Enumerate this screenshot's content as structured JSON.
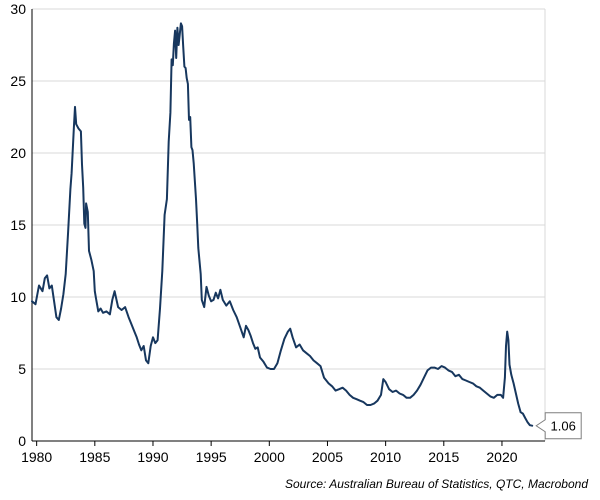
{
  "chart_data": {
    "type": "line",
    "title": "",
    "xlabel": "",
    "ylabel": "",
    "xlim": [
      1979.6,
      2023.7
    ],
    "ylim": [
      0,
      30
    ],
    "grid": true,
    "legend": "none",
    "x_ticks": [
      1980,
      1985,
      1990,
      1995,
      2000,
      2005,
      2010,
      2015,
      2020
    ],
    "x_tick_labels": [
      "1980",
      "1985",
      "1990",
      "1995",
      "2000",
      "2005",
      "2010",
      "2015",
      "2020"
    ],
    "y_ticks": [
      0,
      5,
      10,
      15,
      20,
      25,
      30
    ],
    "y_tick_labels": [
      "0",
      "5",
      "10",
      "15",
      "20",
      "25",
      "30"
    ],
    "series": [
      {
        "color": "#17375e",
        "points": [
          [
            1979.6,
            9.7
          ],
          [
            1979.9,
            9.5
          ],
          [
            1980.2,
            10.8
          ],
          [
            1980.5,
            10.4
          ],
          [
            1980.7,
            11.3
          ],
          [
            1980.9,
            11.5
          ],
          [
            1981.1,
            10.6
          ],
          [
            1981.3,
            10.8
          ],
          [
            1981.5,
            9.7
          ],
          [
            1981.7,
            8.6
          ],
          [
            1981.9,
            8.4
          ],
          [
            1982.1,
            9.2
          ],
          [
            1982.3,
            10.2
          ],
          [
            1982.5,
            11.6
          ],
          [
            1982.7,
            14.5
          ],
          [
            1982.9,
            17.5
          ],
          [
            1983.0,
            18.6
          ],
          [
            1983.2,
            21.8
          ],
          [
            1983.3,
            23.2
          ],
          [
            1983.4,
            22.0
          ],
          [
            1983.6,
            21.7
          ],
          [
            1983.8,
            21.5
          ],
          [
            1983.9,
            19.2
          ],
          [
            1984.0,
            17.6
          ],
          [
            1984.1,
            15.1
          ],
          [
            1984.2,
            14.8
          ],
          [
            1984.25,
            16.5
          ],
          [
            1984.4,
            15.9
          ],
          [
            1984.5,
            13.2
          ],
          [
            1984.7,
            12.6
          ],
          [
            1984.9,
            11.8
          ],
          [
            1985.0,
            10.4
          ],
          [
            1985.1,
            9.9
          ],
          [
            1985.3,
            9.0
          ],
          [
            1985.5,
            9.2
          ],
          [
            1985.7,
            8.9
          ],
          [
            1986.0,
            9.0
          ],
          [
            1986.3,
            8.8
          ],
          [
            1986.5,
            9.8
          ],
          [
            1986.7,
            10.4
          ],
          [
            1987.0,
            9.3
          ],
          [
            1987.3,
            9.1
          ],
          [
            1987.6,
            9.3
          ],
          [
            1987.9,
            8.6
          ],
          [
            1988.1,
            8.2
          ],
          [
            1988.4,
            7.6
          ],
          [
            1988.6,
            7.2
          ],
          [
            1988.8,
            6.7
          ],
          [
            1989.0,
            6.3
          ],
          [
            1989.2,
            6.6
          ],
          [
            1989.4,
            5.6
          ],
          [
            1989.6,
            5.4
          ],
          [
            1989.8,
            6.6
          ],
          [
            1990.0,
            7.2
          ],
          [
            1990.2,
            6.8
          ],
          [
            1990.4,
            7.0
          ],
          [
            1990.6,
            9.2
          ],
          [
            1990.8,
            11.8
          ],
          [
            1991.0,
            15.7
          ],
          [
            1991.2,
            16.8
          ],
          [
            1991.35,
            20.8
          ],
          [
            1991.5,
            22.8
          ],
          [
            1991.6,
            26.5
          ],
          [
            1991.7,
            26.1
          ],
          [
            1991.8,
            27.6
          ],
          [
            1991.9,
            28.5
          ],
          [
            1992.0,
            26.6
          ],
          [
            1992.1,
            28.7
          ],
          [
            1992.2,
            27.5
          ],
          [
            1992.3,
            28.2
          ],
          [
            1992.4,
            29.0
          ],
          [
            1992.5,
            28.8
          ],
          [
            1992.6,
            27.4
          ],
          [
            1992.7,
            26.0
          ],
          [
            1992.8,
            25.9
          ],
          [
            1992.9,
            25.2
          ],
          [
            1993.0,
            24.8
          ],
          [
            1993.1,
            22.3
          ],
          [
            1993.2,
            22.5
          ],
          [
            1993.3,
            20.4
          ],
          [
            1993.4,
            20.2
          ],
          [
            1993.5,
            19.3
          ],
          [
            1993.6,
            18.0
          ],
          [
            1993.7,
            16.8
          ],
          [
            1993.8,
            15.1
          ],
          [
            1993.9,
            13.4
          ],
          [
            1994.0,
            12.5
          ],
          [
            1994.1,
            11.6
          ],
          [
            1994.2,
            9.8
          ],
          [
            1994.4,
            9.3
          ],
          [
            1994.6,
            10.7
          ],
          [
            1994.8,
            10.1
          ],
          [
            1995.0,
            9.7
          ],
          [
            1995.2,
            9.8
          ],
          [
            1995.4,
            10.3
          ],
          [
            1995.6,
            9.9
          ],
          [
            1995.8,
            10.5
          ],
          [
            1996.0,
            9.8
          ],
          [
            1996.3,
            9.4
          ],
          [
            1996.6,
            9.7
          ],
          [
            1996.9,
            9.1
          ],
          [
            1997.2,
            8.6
          ],
          [
            1997.5,
            7.9
          ],
          [
            1997.8,
            7.2
          ],
          [
            1998.0,
            8.0
          ],
          [
            1998.2,
            7.7
          ],
          [
            1998.4,
            7.3
          ],
          [
            1998.6,
            6.8
          ],
          [
            1998.8,
            6.4
          ],
          [
            1999.0,
            6.5
          ],
          [
            1999.2,
            5.8
          ],
          [
            1999.5,
            5.5
          ],
          [
            1999.8,
            5.1
          ],
          [
            2000.1,
            5.0
          ],
          [
            2000.4,
            5.0
          ],
          [
            2000.7,
            5.4
          ],
          [
            2001.0,
            6.3
          ],
          [
            2001.3,
            7.1
          ],
          [
            2001.6,
            7.6
          ],
          [
            2001.8,
            7.8
          ],
          [
            2002.0,
            7.2
          ],
          [
            2002.3,
            6.5
          ],
          [
            2002.6,
            6.7
          ],
          [
            2002.9,
            6.3
          ],
          [
            2003.2,
            6.1
          ],
          [
            2003.5,
            5.9
          ],
          [
            2003.8,
            5.6
          ],
          [
            2004.1,
            5.4
          ],
          [
            2004.4,
            5.2
          ],
          [
            2004.7,
            4.4
          ],
          [
            2004.9,
            4.2
          ],
          [
            2005.1,
            4.0
          ],
          [
            2005.4,
            3.8
          ],
          [
            2005.7,
            3.5
          ],
          [
            2006.0,
            3.6
          ],
          [
            2006.3,
            3.7
          ],
          [
            2006.6,
            3.5
          ],
          [
            2006.9,
            3.2
          ],
          [
            2007.2,
            3.0
          ],
          [
            2007.5,
            2.9
          ],
          [
            2007.8,
            2.8
          ],
          [
            2008.1,
            2.7
          ],
          [
            2008.4,
            2.5
          ],
          [
            2008.7,
            2.5
          ],
          [
            2009.0,
            2.6
          ],
          [
            2009.3,
            2.8
          ],
          [
            2009.6,
            3.2
          ],
          [
            2009.8,
            4.3
          ],
          [
            2010.0,
            4.1
          ],
          [
            2010.3,
            3.6
          ],
          [
            2010.6,
            3.4
          ],
          [
            2010.9,
            3.5
          ],
          [
            2011.2,
            3.3
          ],
          [
            2011.5,
            3.2
          ],
          [
            2011.8,
            3.0
          ],
          [
            2012.1,
            3.0
          ],
          [
            2012.4,
            3.2
          ],
          [
            2012.7,
            3.5
          ],
          [
            2013.0,
            3.9
          ],
          [
            2013.3,
            4.4
          ],
          [
            2013.6,
            4.9
          ],
          [
            2013.9,
            5.1
          ],
          [
            2014.2,
            5.1
          ],
          [
            2014.5,
            5.0
          ],
          [
            2014.8,
            5.2
          ],
          [
            2015.1,
            5.1
          ],
          [
            2015.4,
            4.9
          ],
          [
            2015.7,
            4.8
          ],
          [
            2016.0,
            4.5
          ],
          [
            2016.3,
            4.6
          ],
          [
            2016.6,
            4.3
          ],
          [
            2016.9,
            4.2
          ],
          [
            2017.2,
            4.1
          ],
          [
            2017.5,
            4.0
          ],
          [
            2017.8,
            3.8
          ],
          [
            2018.1,
            3.7
          ],
          [
            2018.4,
            3.5
          ],
          [
            2018.7,
            3.3
          ],
          [
            2019.0,
            3.1
          ],
          [
            2019.3,
            3.0
          ],
          [
            2019.6,
            3.2
          ],
          [
            2019.9,
            3.2
          ],
          [
            2020.1,
            3.0
          ],
          [
            2020.25,
            4.4
          ],
          [
            2020.35,
            6.6
          ],
          [
            2020.45,
            7.6
          ],
          [
            2020.55,
            7.0
          ],
          [
            2020.65,
            5.3
          ],
          [
            2020.8,
            4.6
          ],
          [
            2021.0,
            4.0
          ],
          [
            2021.2,
            3.3
          ],
          [
            2021.4,
            2.6
          ],
          [
            2021.6,
            2.0
          ],
          [
            2021.8,
            1.9
          ],
          [
            2022.0,
            1.6
          ],
          [
            2022.2,
            1.3
          ],
          [
            2022.4,
            1.1
          ],
          [
            2022.6,
            1.06
          ]
        ]
      }
    ],
    "annotations": [
      {
        "text": "1.06",
        "x": 2022.6,
        "y": 1.06
      }
    ],
    "source": "Source: Australian Bureau of Statistics, QTC, Macrobond"
  }
}
